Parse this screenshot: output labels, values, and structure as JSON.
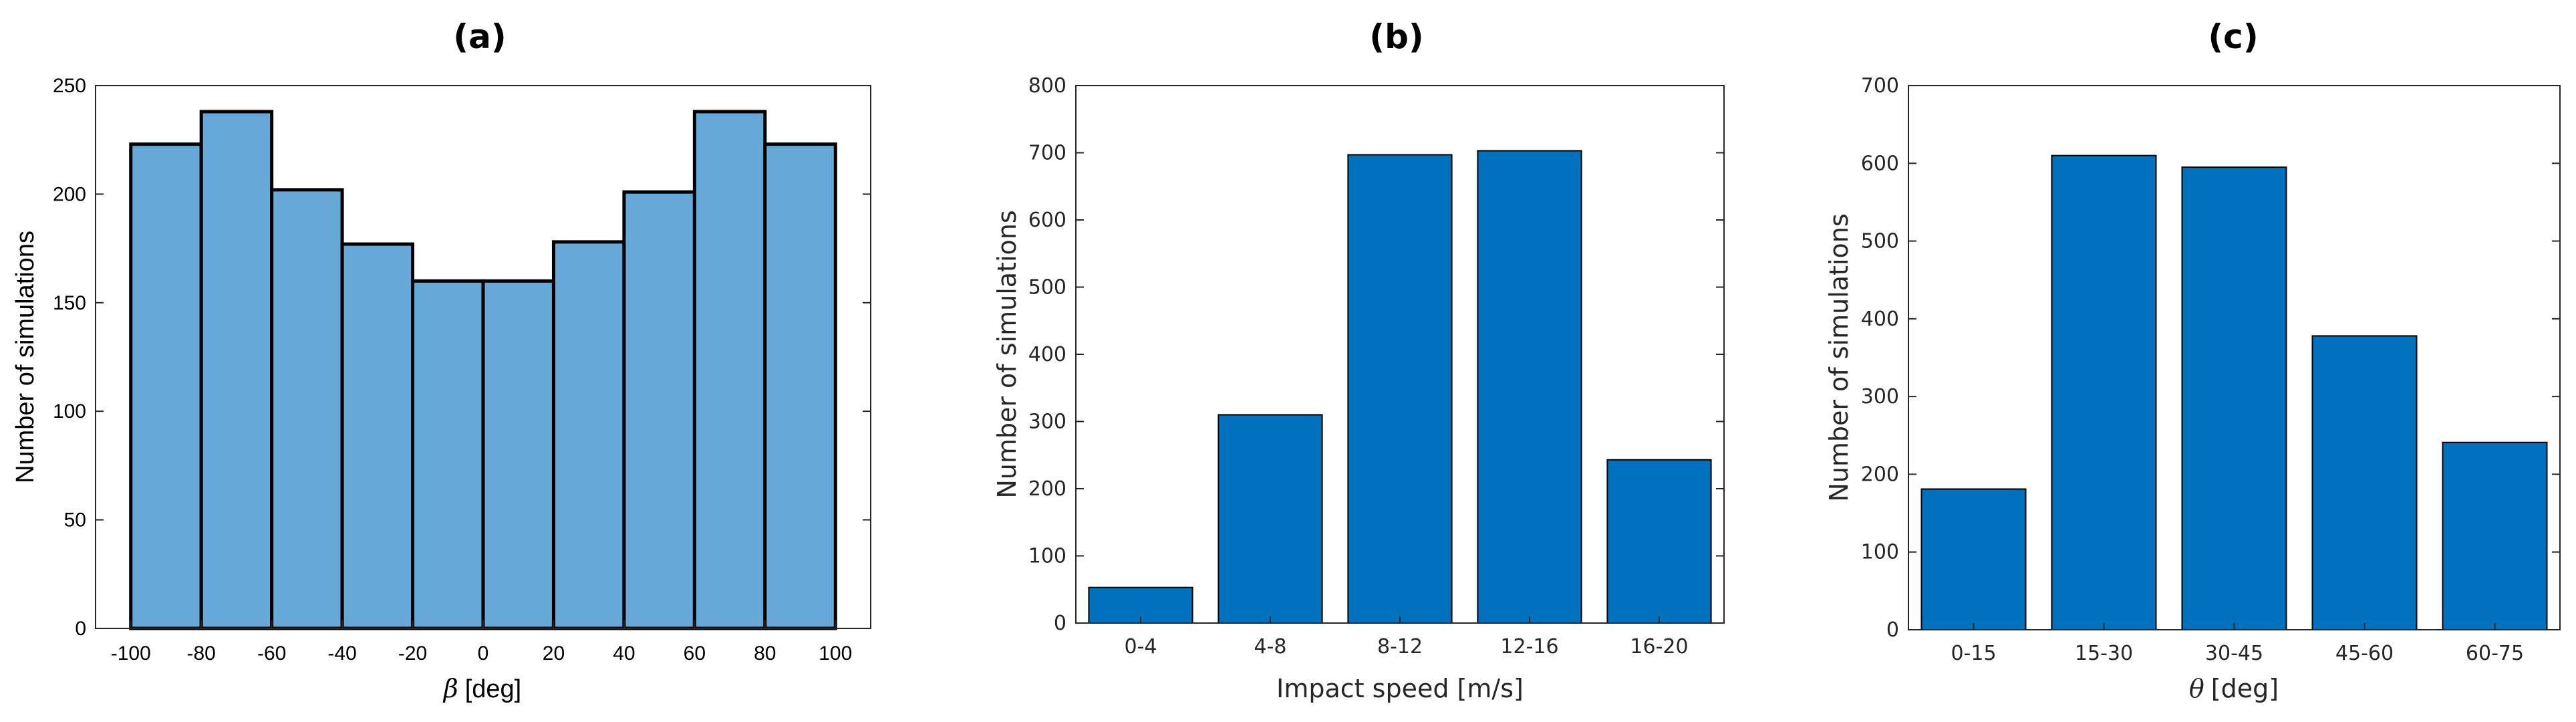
{
  "chart_data": [
    {
      "type": "bar",
      "title": "(a)",
      "xlabel_symbol": "β",
      "xlabel": "[deg]",
      "ylabel": "Number of simulations",
      "bin_edges": [
        -100,
        -80,
        -60,
        -40,
        -20,
        0,
        20,
        40,
        60,
        80,
        100
      ],
      "values": [
        223,
        238,
        202,
        177,
        160,
        160,
        178,
        201,
        238,
        223
      ],
      "xlim": [
        -110,
        110
      ],
      "ylim": [
        0,
        250
      ],
      "xticks": [
        "-100",
        "-80",
        "-60",
        "-40",
        "-20",
        "0",
        "20",
        "40",
        "60",
        "80",
        "100"
      ],
      "yticks": [
        "0",
        "50",
        "100",
        "150",
        "200",
        "250"
      ],
      "bar_color": "#66a9d8",
      "edge_color": "#000000"
    },
    {
      "type": "bar",
      "title": "(b)",
      "xlabel": "Impact speed [m/s]",
      "ylabel": "Number of simulations",
      "categories": [
        "0-4",
        "4-8",
        "8-12",
        "12-16",
        "16-20"
      ],
      "values": [
        53,
        310,
        697,
        703,
        243
      ],
      "ylim": [
        0,
        800
      ],
      "yticks": [
        "0",
        "100",
        "200",
        "300",
        "400",
        "500",
        "600",
        "700",
        "800"
      ],
      "bar_color": "#0072bd",
      "edge_color": "#000000"
    },
    {
      "type": "bar",
      "title": "(c)",
      "xlabel_symbol": "θ",
      "xlabel": "[deg]",
      "ylabel": "Number of simulations",
      "categories": [
        "0-15",
        "15-30",
        "30-45",
        "45-60",
        "60-75"
      ],
      "values": [
        181,
        610,
        595,
        378,
        241
      ],
      "ylim": [
        0,
        700
      ],
      "yticks": [
        "0",
        "100",
        "200",
        "300",
        "400",
        "500",
        "600",
        "700"
      ],
      "bar_color": "#0072bd",
      "edge_color": "#000000"
    }
  ]
}
